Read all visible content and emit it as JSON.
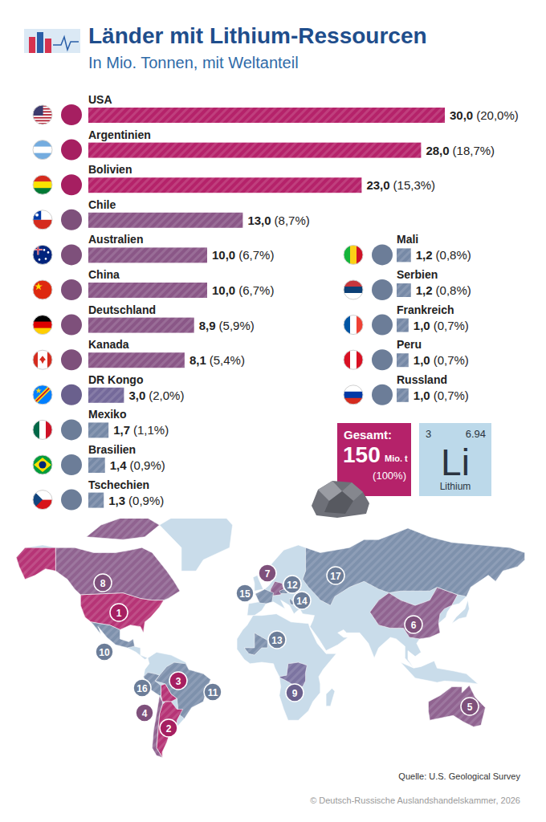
{
  "chart_data": {
    "type": "bar",
    "orientation": "horizontal",
    "title": "Länder mit Lithium-Ressourcen",
    "subtitle": "In Mio. Tonnen, mit Weltanteil",
    "categories": [
      "USA",
      "Argentinien",
      "Bolivien",
      "Chile",
      "Australien",
      "China",
      "Deutschland",
      "Kanada",
      "DR Kongo",
      "Mexiko",
      "Brasilien",
      "Tschechien",
      "Mali",
      "Serbien",
      "Frankreich",
      "Peru",
      "Russland"
    ],
    "ranks": [
      1,
      2,
      3,
      4,
      5,
      6,
      7,
      8,
      9,
      10,
      11,
      12,
      13,
      14,
      15,
      16,
      17
    ],
    "values": [
      30.0,
      28.0,
      23.0,
      13.0,
      10.0,
      10.0,
      8.9,
      8.1,
      3.0,
      1.7,
      1.4,
      1.3,
      1.2,
      1.2,
      1.0,
      1.0,
      1.0
    ],
    "value_labels": [
      "30,0",
      "28,0",
      "23,0",
      "13,0",
      "10,0",
      "10,0",
      "8,9",
      "8,1",
      "3,0",
      "1,7",
      "1,4",
      "1,3",
      "1,2",
      "1,2",
      "1,0",
      "1,0",
      "1,0"
    ],
    "share_labels": [
      "(20,0%)",
      "(18,7%)",
      "(15,3%)",
      "(8,7%)",
      "(6,7%)",
      "(6,7%)",
      "(5,9%)",
      "(5,4%)",
      "(2,0%)",
      "(1,1%)",
      "(0,9%)",
      "(0,9%)",
      "(0,8%)",
      "(0,8%)",
      "(0,7%)",
      "(0,7%)",
      "(0,7%)"
    ],
    "colors": [
      "#b5226a",
      "#b5226a",
      "#b5226a",
      "#8a5787",
      "#8a5787",
      "#8a5787",
      "#8a5787",
      "#8a5787",
      "#74699a",
      "#7689a6",
      "#7689a6",
      "#7689a6",
      "#7689a6",
      "#7689a6",
      "#7689a6",
      "#7689a6",
      "#7689a6"
    ],
    "xlim": [
      0,
      30
    ],
    "data_labels": true,
    "tick_labels": false,
    "total": {
      "label": "Gesamt:",
      "value": 150,
      "unit": "Mio. t",
      "share_label": "(100%)"
    },
    "element": {
      "number": 3,
      "mass": 6.94,
      "symbol": "Li",
      "name": "Lithium"
    },
    "source": "Quelle: U.S. Geological Survey",
    "copyright": "© Deutsch-Russische Auslandshandelskammer, 2026"
  }
}
